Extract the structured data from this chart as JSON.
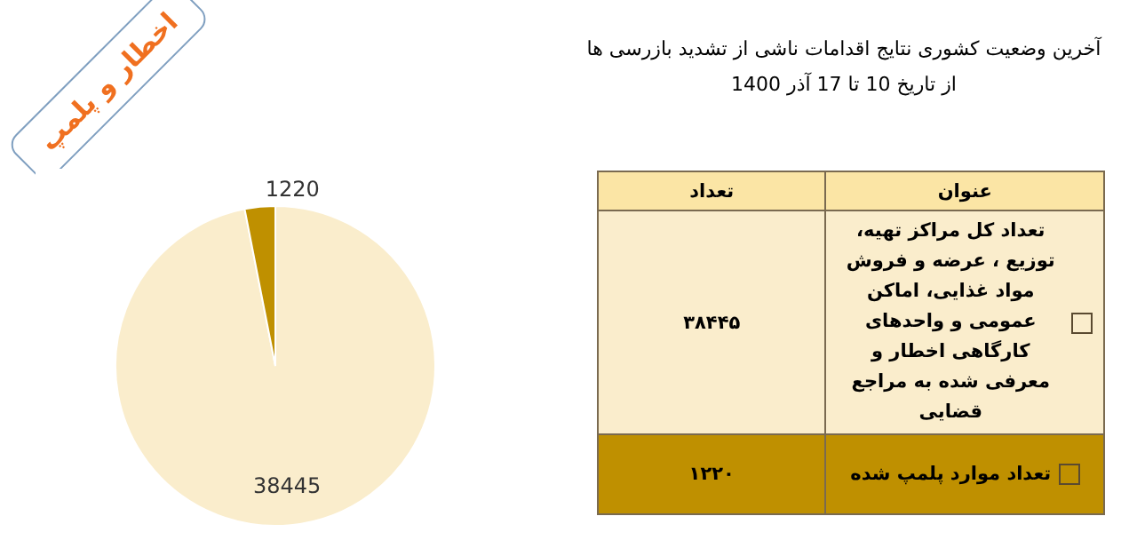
{
  "chart_data": {
    "type": "pie",
    "title": "آخرین وضعیت کشوری نتایج اقدامات ناشی از تشدید بازرسی ها",
    "subtitle": "از تاریخ 10 تا 17 آذر 1400",
    "categories": [
      "تعداد کل مراکز تهیه، توزیع ، عرضه و فروش مواد غذایی، اماکن عمومی و واحدهای کارگاهی اخطار و معرفی شده به مراجع قضایی",
      "تعداد موارد پلمپ شده"
    ],
    "values": [
      38445,
      1220
    ],
    "colors": [
      "#faedcc",
      "#bf9000"
    ],
    "data_labels": true,
    "legend": "right",
    "annotations": [
      "اخطار و پلمپ",
      "عنوان",
      "تعداد",
      "۳۸۴۴۵",
      "۱۲۲۰"
    ]
  }
}
